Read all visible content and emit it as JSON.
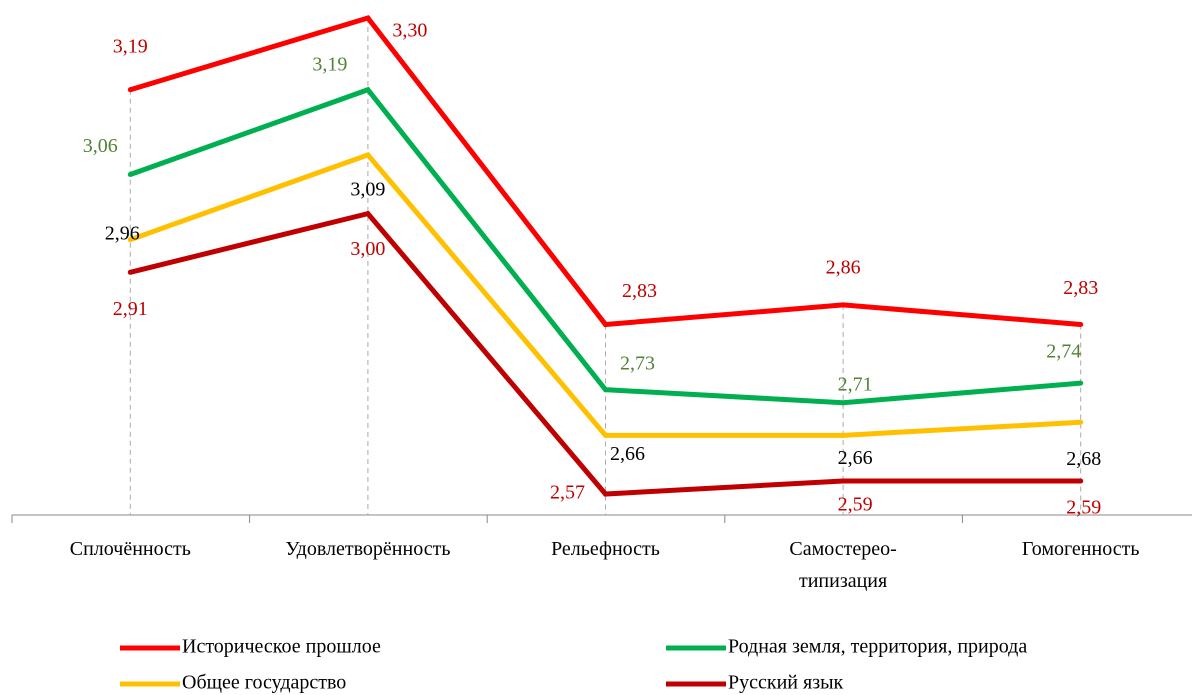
{
  "chart_data": {
    "type": "line",
    "categories": [
      "Сплочённость",
      "Удовлетворённость",
      "Рельефность",
      "Самостерео-\nтипизация",
      "Гомогенность"
    ],
    "series": [
      {
        "name": "Историческое прошлое",
        "color": "#ff0000",
        "label_color": "#c00000",
        "values": [
          3.19,
          3.3,
          2.83,
          2.86,
          2.83
        ],
        "value_labels": [
          "3,19",
          "3,30",
          "2,83",
          "2,86",
          "2,83"
        ]
      },
      {
        "name": "Родная земля, территория, природа",
        "color": "#00b050",
        "label_color": "#538135",
        "values": [
          3.06,
          3.19,
          2.73,
          2.71,
          2.74
        ],
        "value_labels": [
          "3,06",
          "3,19",
          "2,73",
          "2,71",
          "2,74"
        ]
      },
      {
        "name": "Общее государство",
        "color": "#ffc000",
        "label_color": "#000000",
        "values": [
          2.96,
          3.09,
          2.66,
          2.66,
          2.68
        ],
        "value_labels": [
          "2,96",
          "3,09",
          "2,66",
          "2,66",
          "2,68"
        ]
      },
      {
        "name": "Русский язык",
        "color": "#c00000",
        "label_color": "#c00000",
        "values": [
          2.91,
          3.0,
          2.57,
          2.59,
          2.59
        ],
        "value_labels": [
          "2,91",
          "3,00",
          "2,57",
          "2,59",
          "2,59"
        ]
      }
    ]
  }
}
